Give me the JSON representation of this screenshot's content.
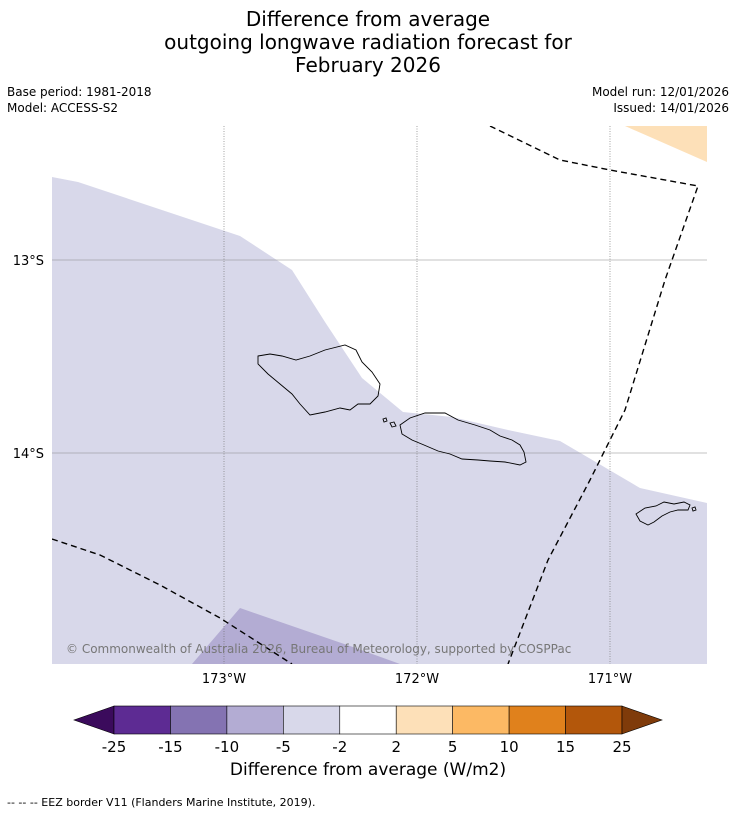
{
  "header": {
    "title_lines": [
      "Difference from average",
      "outgoing longwave radiation forecast for",
      "February 2026"
    ],
    "base_period": "Base period: 1981-2018",
    "model": "Model: ACCESS-S2",
    "model_run": "Model run: 12/01/2026",
    "issued": "Issued: 14/01/2026"
  },
  "map": {
    "lat_labels": [
      "13°S",
      "14°S"
    ],
    "lon_labels": [
      "173°W",
      "172°W",
      "171°W"
    ],
    "copyright": "© Commonwealth of Australia 2026, Bureau of Meteorology, supported by COSPPac",
    "colors": {
      "ocean_default": "#ffffff",
      "anomaly_minus2_to_minus5": "#d8d8ea",
      "anomaly_minus5_to_minus10": "#b3acd3",
      "anomaly_2_to_5": "#fde0b8",
      "coast": "#000000"
    }
  },
  "colorbar": {
    "title": "Difference from average (W/m2)",
    "tick_labels": [
      "-25",
      "-15",
      "-10",
      "-5",
      "-2",
      "2",
      "5",
      "10",
      "15",
      "25"
    ],
    "bins": [
      "#5d2b93",
      "#8473b2",
      "#b3acd3",
      "#d8d8ea",
      "#ffffff",
      "#fde0b8",
      "#fcb964",
      "#e0811c",
      "#b3570b"
    ],
    "extend_low": "#3b0b5c",
    "extend_high": "#7f3b0a"
  },
  "footer": {
    "eez_note": "--  --  -- EEZ border V11 (Flanders Marine Institute, 2019)."
  }
}
